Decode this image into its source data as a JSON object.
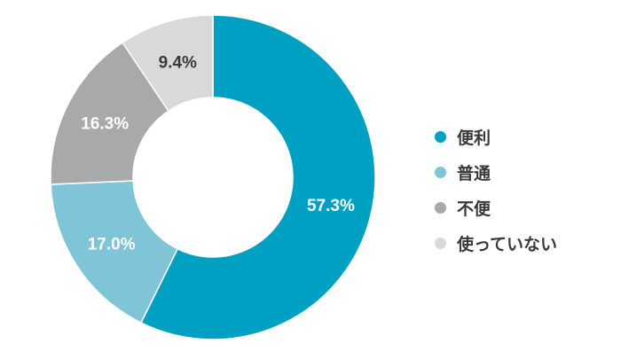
{
  "chart_data": {
    "type": "pie",
    "donut": true,
    "categories": [
      "便利",
      "普通",
      "不便",
      "使っていない"
    ],
    "values": [
      57.3,
      17.0,
      16.3,
      9.4
    ],
    "labels": [
      "57.3%",
      "17.0%",
      "16.3%",
      "9.4%"
    ],
    "colors": [
      "#00a0c2",
      "#80c5d7",
      "#a7a9ab",
      "#d9d9d9"
    ],
    "label_colors": [
      "#ffffff",
      "#ffffff",
      "#ffffff",
      "#3a3a3a"
    ],
    "legend_position": "right",
    "start": "top",
    "direction": "clockwise"
  }
}
